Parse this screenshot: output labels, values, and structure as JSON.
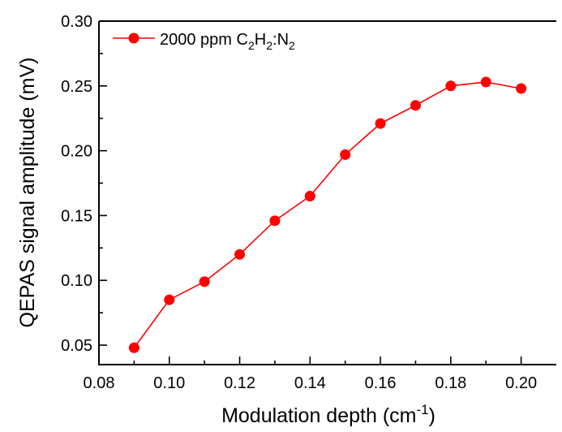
{
  "chart_data": {
    "type": "line",
    "xlabel": "Modulation depth (cm",
    "xlabel_sup": "-1",
    "xlabel_end": ")",
    "ylabel": "QEPAS signal amplitude (mV)",
    "xlim": [
      0.08,
      0.21
    ],
    "ylim": [
      0.035,
      0.3
    ],
    "x_ticks": [
      0.08,
      0.1,
      0.12,
      0.14,
      0.16,
      0.18,
      0.2
    ],
    "x_tick_labels": [
      "0.08",
      "0.10",
      "0.12",
      "0.14",
      "0.16",
      "0.18",
      "0.20"
    ],
    "y_ticks": [
      0.05,
      0.1,
      0.15,
      0.2,
      0.25,
      0.3
    ],
    "y_tick_labels": [
      "0.05",
      "0.10",
      "0.15",
      "0.20",
      "0.25",
      "0.30"
    ],
    "legend_position": "top-left",
    "series": [
      {
        "name": "2000 ppm C2H2:N2",
        "legend": {
          "prefix": "2000 ppm C",
          "sub1": "2",
          "mid": "H",
          "sub2": "2",
          "mid2": ":N",
          "sub3": "2"
        },
        "color": "#ff0000",
        "marker": "circle",
        "x": [
          0.09,
          0.1,
          0.11,
          0.12,
          0.13,
          0.14,
          0.15,
          0.16,
          0.17,
          0.18,
          0.19,
          0.2
        ],
        "y": [
          0.048,
          0.085,
          0.099,
          0.12,
          0.146,
          0.165,
          0.197,
          0.221,
          0.235,
          0.25,
          0.253,
          0.248
        ]
      }
    ]
  }
}
